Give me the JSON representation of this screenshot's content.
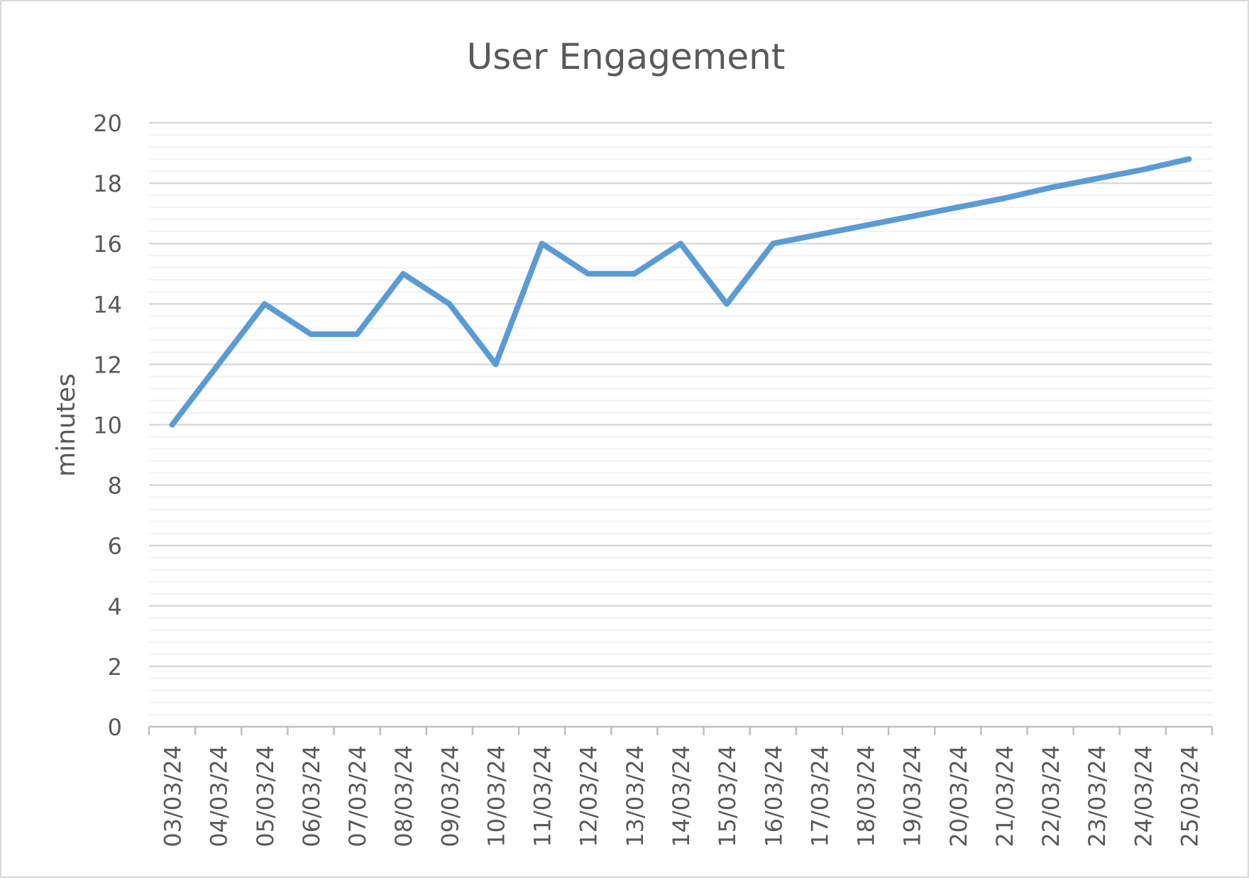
{
  "chart_data": {
    "type": "line",
    "title": "User Engagement",
    "xlabel": "",
    "ylabel": "minutes",
    "ylim": [
      0,
      20
    ],
    "ytick_step": 2,
    "minor_grid_step": 0.4,
    "grid": true,
    "legend": "none",
    "categories": [
      "03/03/24",
      "04/03/24",
      "05/03/24",
      "06/03/24",
      "07/03/24",
      "08/03/24",
      "09/03/24",
      "10/03/24",
      "11/03/24",
      "12/03/24",
      "13/03/24",
      "14/03/24",
      "15/03/24",
      "16/03/24",
      "17/03/24",
      "18/03/24",
      "19/03/24",
      "20/03/24",
      "21/03/24",
      "22/03/24",
      "23/03/24",
      "24/03/24",
      "25/03/24"
    ],
    "series": [
      {
        "values": [
          10,
          12,
          14,
          13,
          13,
          15,
          14,
          12,
          16,
          15,
          15,
          16,
          14,
          16,
          16.3,
          16.6,
          16.9,
          17.2,
          17.5,
          17.85,
          18.15,
          18.45,
          18.8
        ],
        "color": "#5b9bd5"
      }
    ],
    "colors": {
      "text": "#595959",
      "major_grid": "#d9d9d9",
      "minor_grid": "#f2f2f2",
      "axis": "#bfbfbf"
    }
  }
}
